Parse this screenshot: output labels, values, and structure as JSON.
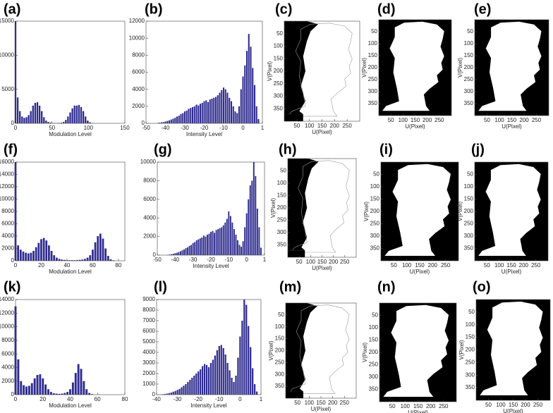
{
  "chart_data": [
    {
      "type": "bar",
      "title": "(a)",
      "xlabel": "Modulation Level",
      "color": "#2e2b8f",
      "x": [
        0,
        3,
        6,
        9,
        12,
        15,
        18,
        21,
        24,
        27,
        30,
        33,
        36,
        39,
        42,
        45,
        48,
        51,
        54,
        57,
        60,
        63,
        66,
        69,
        72,
        75,
        78,
        81,
        84,
        87,
        90,
        93,
        96,
        99,
        102,
        105
      ],
      "values": [
        15000,
        3800,
        1800,
        1000,
        800,
        900,
        1200,
        1800,
        2600,
        3000,
        3100,
        2600,
        1800,
        900,
        400,
        200,
        100,
        50,
        50,
        50,
        60,
        100,
        200,
        500,
        1000,
        1600,
        2200,
        2600,
        2600,
        2700,
        2400,
        1800,
        1000,
        400,
        150,
        50
      ],
      "xlim": [
        0,
        150
      ],
      "xticks": [
        0,
        50,
        100,
        150
      ],
      "ylim": [
        0,
        15000
      ],
      "yticks": [
        0,
        5000,
        10000,
        15000
      ]
    },
    {
      "type": "bar",
      "title": "(b)",
      "xlabel": "Intensity Level",
      "color": "#2e2b8f",
      "x": [
        -44,
        -43,
        -42,
        -41,
        -40,
        -39,
        -38,
        -37,
        -36,
        -35,
        -34,
        -33,
        -32,
        -31,
        -30,
        -29,
        -28,
        -27,
        -26,
        -25,
        -24,
        -23,
        -22,
        -21,
        -20,
        -19,
        -18,
        -17,
        -16,
        -15,
        -14,
        -13,
        -12,
        -11,
        -10,
        -9,
        -8,
        -7,
        -6,
        -5,
        -4,
        -3,
        -2,
        -1,
        0,
        1,
        2,
        3,
        4,
        5,
        6,
        7,
        8
      ],
      "values": [
        50,
        80,
        120,
        150,
        200,
        280,
        350,
        450,
        550,
        650,
        800,
        900,
        1100,
        1200,
        1400,
        1500,
        1700,
        1800,
        1900,
        2000,
        2200,
        2100,
        2300,
        2400,
        2600,
        2700,
        2500,
        2800,
        2900,
        3000,
        3100,
        3300,
        3600,
        3900,
        4200,
        4000,
        3600,
        3000,
        2600,
        2000,
        1400,
        1200,
        2000,
        4000,
        5500,
        6800,
        8500,
        10500,
        9000,
        6500,
        4500,
        2000,
        500
      ],
      "xlim": [
        -50,
        10
      ],
      "xticks": [
        -50,
        -40,
        -30,
        -20,
        -10,
        0,
        {
          "value": 10,
          "label": "1"
        }
      ],
      "ylim": [
        0,
        12000
      ],
      "yticks": [
        0,
        2000,
        4000,
        6000,
        8000,
        10000,
        12000
      ]
    },
    {
      "type": "image",
      "title": "(c)",
      "xlabel": "U(Pixel)",
      "ylabel": "V(Pixel)",
      "xlim": [
        0,
        300
      ],
      "xticks": [
        50,
        100,
        150,
        200,
        250
      ],
      "ylim": [
        400,
        0
      ],
      "yticks": [
        50,
        100,
        150,
        200,
        250,
        300,
        350
      ]
    },
    {
      "type": "image",
      "title": "(d)",
      "xlabel": "U(Pixel)",
      "ylabel": "V(Pixel)",
      "xlim": [
        0,
        300
      ],
      "xticks": [
        50,
        100,
        150,
        200,
        250
      ],
      "ylim": [
        400,
        0
      ],
      "yticks": [
        50,
        100,
        150,
        200,
        250,
        300,
        350
      ]
    },
    {
      "type": "image",
      "title": "(e)",
      "xlabel": "U(Pixel)",
      "ylabel": "V(Pixel)",
      "xlim": [
        0,
        300
      ],
      "xticks": [
        50,
        100,
        150,
        200,
        250
      ],
      "ylim": [
        400,
        0
      ],
      "yticks": [
        50,
        100,
        150,
        200,
        250,
        300,
        350
      ]
    },
    {
      "type": "bar",
      "title": "(f)",
      "xlabel": "Modulation Level",
      "color": "#2e2b8f",
      "x": [
        0,
        2,
        4,
        6,
        8,
        10,
        12,
        14,
        16,
        18,
        20,
        22,
        24,
        26,
        28,
        30,
        32,
        34,
        36,
        38,
        40,
        42,
        44,
        46,
        48,
        50,
        52,
        54,
        56,
        58,
        60,
        62,
        64,
        66,
        68,
        70,
        72,
        74,
        76
      ],
      "values": [
        16000,
        2500,
        1800,
        1500,
        1300,
        1200,
        1300,
        1600,
        2200,
        2900,
        3500,
        3700,
        3300,
        2500,
        1600,
        900,
        500,
        300,
        200,
        150,
        100,
        100,
        100,
        100,
        120,
        150,
        200,
        300,
        500,
        900,
        1800,
        3000,
        4000,
        4400,
        3600,
        2000,
        800,
        250,
        80
      ],
      "xlim": [
        0,
        85
      ],
      "xticks": [
        0,
        20,
        40,
        60,
        80
      ],
      "ylim": [
        0,
        16000
      ],
      "yticks": [
        0,
        2000,
        4000,
        6000,
        8000,
        10000,
        12000,
        14000,
        16000
      ]
    },
    {
      "type": "bar",
      "title": "(g)",
      "xlabel": "Intensity Level",
      "color": "#2e2b8f",
      "x": [
        -44,
        -43,
        -42,
        -41,
        -40,
        -39,
        -38,
        -37,
        -36,
        -35,
        -34,
        -33,
        -32,
        -31,
        -30,
        -29,
        -28,
        -27,
        -26,
        -25,
        -24,
        -23,
        -22,
        -21,
        -20,
        -19,
        -18,
        -17,
        -16,
        -15,
        -14,
        -13,
        -12,
        -11,
        -10,
        -9,
        -8,
        -7,
        -6,
        -5,
        -4,
        -3,
        -2,
        -1,
        0,
        1,
        2,
        3,
        4,
        5,
        6,
        7,
        8
      ],
      "values": [
        40,
        60,
        100,
        150,
        200,
        260,
        330,
        420,
        520,
        620,
        750,
        850,
        1000,
        1100,
        1300,
        1400,
        1600,
        1700,
        1800,
        1900,
        2100,
        2000,
        2200,
        2300,
        2500,
        2600,
        2400,
        2700,
        2800,
        2900,
        3000,
        3200,
        3500,
        3900,
        4700,
        4200,
        3500,
        2800,
        2200,
        1600,
        1100,
        900,
        1500,
        3000,
        4500,
        6000,
        7500,
        8000,
        10000,
        8500,
        5000,
        3000,
        800
      ],
      "xlim": [
        -50,
        10
      ],
      "xticks": [
        -50,
        -40,
        -30,
        -20,
        -10,
        0,
        {
          "value": 10,
          "label": "1"
        }
      ],
      "ylim": [
        0,
        10000
      ],
      "yticks": [
        0,
        2000,
        4000,
        6000,
        8000,
        10000
      ]
    },
    {
      "type": "image",
      "title": "(h)",
      "xlabel": "U(Pixel)",
      "ylabel": "V(Pixel)",
      "xlim": [
        0,
        300
      ],
      "xticks": [
        50,
        100,
        150,
        200,
        250
      ],
      "ylim": [
        400,
        0
      ],
      "yticks": [
        50,
        100,
        150,
        200,
        250,
        300,
        350
      ]
    },
    {
      "type": "image",
      "title": "(i)",
      "xlabel": "U(Pixel)",
      "ylabel": "V(Pixel)",
      "xlim": [
        0,
        300
      ],
      "xticks": [
        50,
        100,
        150,
        200,
        250
      ],
      "ylim": [
        400,
        0
      ],
      "yticks": [
        50,
        100,
        150,
        200,
        250,
        300,
        350
      ]
    },
    {
      "type": "image",
      "title": "(j)",
      "xlabel": "U(Pixel)",
      "ylabel": "V(Pixel)",
      "xlim": [
        0,
        300
      ],
      "xticks": [
        50,
        100,
        150,
        200,
        250
      ],
      "ylim": [
        400,
        0
      ],
      "yticks": [
        50,
        100,
        150,
        200,
        250,
        300,
        350
      ]
    },
    {
      "type": "bar",
      "title": "(k)",
      "xlabel": "Modulation Level",
      "color": "#2e2b8f",
      "x": [
        0,
        2,
        4,
        6,
        8,
        10,
        12,
        14,
        16,
        18,
        20,
        22,
        24,
        26,
        28,
        30,
        32,
        34,
        36,
        38,
        40,
        42,
        44,
        46,
        48,
        50,
        52,
        54,
        56
      ],
      "values": [
        13000,
        5200,
        2000,
        1400,
        1200,
        1300,
        1700,
        2400,
        2900,
        3000,
        2400,
        1500,
        800,
        400,
        200,
        150,
        120,
        150,
        250,
        400,
        800,
        1800,
        3200,
        4500,
        3800,
        2000,
        800,
        250,
        80
      ],
      "xlim": [
        0,
        80
      ],
      "xticks": [
        0,
        20,
        40,
        60,
        80
      ],
      "ylim": [
        0,
        14000
      ],
      "yticks": [
        0,
        2000,
        4000,
        6000,
        8000,
        10000,
        12000,
        14000
      ]
    },
    {
      "type": "bar",
      "title": "(l)",
      "xlabel": "Intensity Level",
      "color": "#2e2b8f",
      "x": [
        -38,
        -37,
        -36,
        -35,
        -34,
        -33,
        -32,
        -31,
        -30,
        -29,
        -28,
        -27,
        -26,
        -25,
        -24,
        -23,
        -22,
        -21,
        -20,
        -19,
        -18,
        -17,
        -16,
        -15,
        -14,
        -13,
        -12,
        -11,
        -10,
        -9,
        -8,
        -7,
        -6,
        -5,
        -4,
        -3,
        -2,
        -1,
        0,
        1,
        2,
        3,
        4,
        5,
        6,
        7,
        8
      ],
      "values": [
        20,
        40,
        70,
        100,
        150,
        200,
        280,
        350,
        450,
        550,
        700,
        850,
        1000,
        1200,
        1400,
        1600,
        1800,
        2000,
        2200,
        2400,
        2700,
        2900,
        2800,
        2600,
        3000,
        3300,
        3700,
        4200,
        4600,
        4700,
        4400,
        3800,
        3000,
        2300,
        1600,
        1200,
        1800,
        3500,
        5500,
        7000,
        9000,
        8500,
        6500,
        4500,
        2500,
        1000,
        300
      ],
      "xlim": [
        -40,
        10
      ],
      "xticks": [
        -40,
        -30,
        -20,
        -10,
        0,
        {
          "value": 10,
          "label": "1"
        }
      ],
      "ylim": [
        0,
        9000
      ],
      "yticks": [
        0,
        1000,
        2000,
        3000,
        4000,
        5000,
        6000,
        7000,
        8000,
        9000
      ]
    },
    {
      "type": "image",
      "title": "(m)",
      "xlabel": "U(Pixel)",
      "ylabel": "V(Pixel)",
      "xlim": [
        0,
        300
      ],
      "xticks": [
        50,
        100,
        150,
        200,
        250
      ],
      "ylim": [
        400,
        0
      ],
      "yticks": [
        50,
        100,
        150,
        200,
        250,
        300,
        350
      ]
    },
    {
      "type": "image",
      "title": "(n)",
      "xlabel": "U(Pixel)",
      "ylabel": "V(Pixel)",
      "xlim": [
        0,
        300
      ],
      "xticks": [
        50,
        100,
        150,
        200,
        250
      ],
      "ylim": [
        400,
        0
      ],
      "yticks": [
        50,
        100,
        150,
        200,
        250,
        300,
        350
      ]
    },
    {
      "type": "image",
      "title": "(o)",
      "xlabel": "U(Pixel)",
      "ylabel": "V(Pixel)",
      "xlim": [
        0,
        300
      ],
      "xticks": [
        50,
        100,
        150,
        200,
        250
      ],
      "ylim": [
        400,
        0
      ],
      "yticks": [
        50,
        100,
        150,
        200,
        250,
        300,
        350
      ]
    }
  ]
}
